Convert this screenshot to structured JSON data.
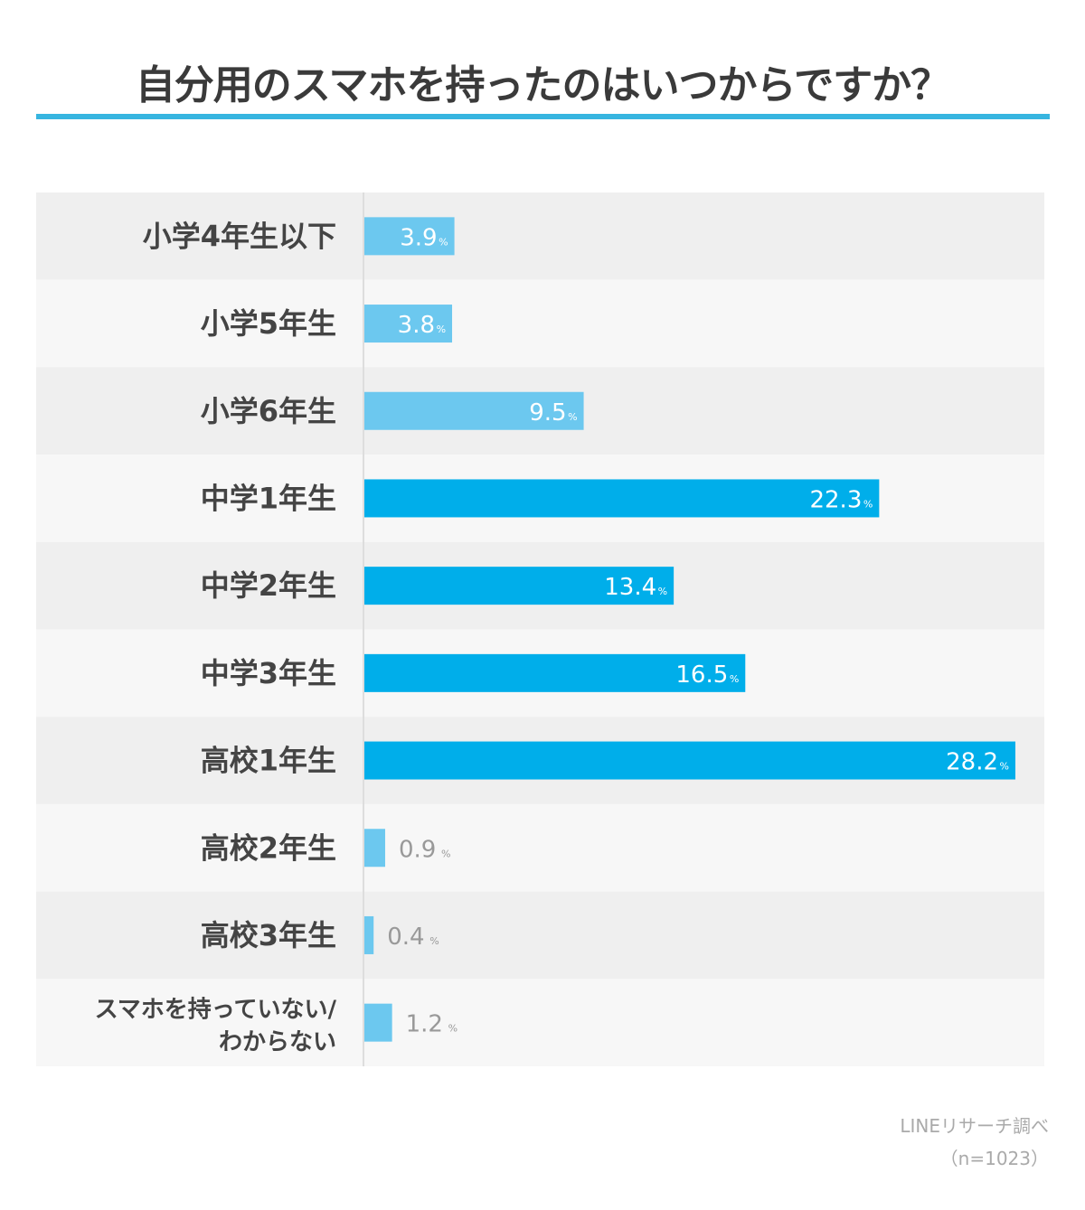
{
  "chart_data": {
    "type": "bar",
    "orientation": "horizontal",
    "title": "自分用のスマホを持ったのはいつからですか？",
    "categories": [
      "小学4年生以下",
      "小学5年生",
      "小学6年生",
      "中学1年生",
      "中学2年生",
      "中学3年生",
      "高校1年生",
      "高校2年生",
      "高校3年生",
      "スマホを持っていない/\nわからない"
    ],
    "values": [
      3.9,
      3.8,
      9.5,
      22.3,
      13.4,
      16.5,
      28.2,
      0.9,
      0.4,
      1.2
    ],
    "value_labels": [
      "3.9",
      "3.8",
      "9.5",
      "22.3",
      "13.4",
      "16.5",
      "28.2",
      "0.9",
      "0.4",
      "1.2"
    ],
    "unit": "%",
    "highlight": [
      false,
      false,
      false,
      true,
      true,
      true,
      true,
      false,
      false,
      false
    ],
    "xlim": [
      0,
      28.2
    ],
    "grid": false,
    "xlabel": "",
    "ylabel": ""
  },
  "colors": {
    "light": "#6cc8ef",
    "dark": "#00aeea",
    "row_a": "#efefef",
    "row_b": "#f7f7f7"
  },
  "source": {
    "line1": "LINEリサーチ調べ",
    "line2": "（n=1023）"
  }
}
